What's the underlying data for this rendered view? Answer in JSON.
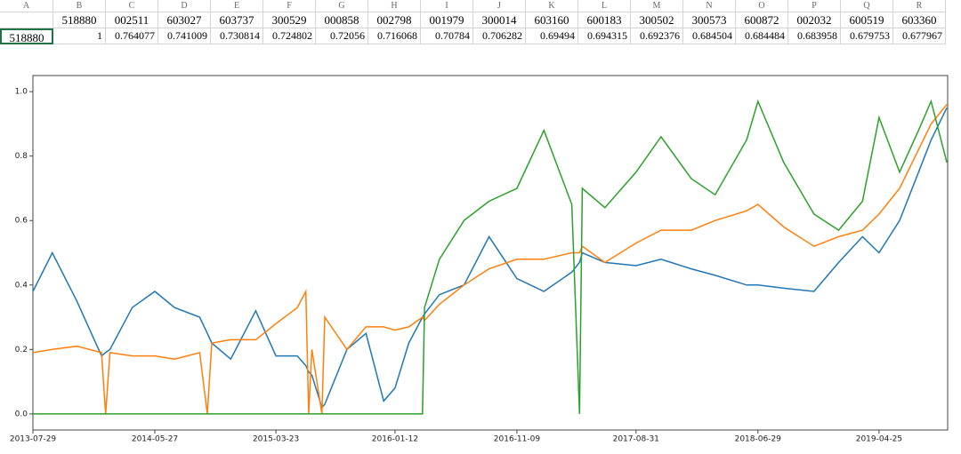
{
  "spreadsheet": {
    "columns": [
      "A",
      "B",
      "C",
      "D",
      "E",
      "F",
      "G",
      "H",
      "I",
      "J",
      "K",
      "L",
      "M",
      "N",
      "O",
      "P",
      "Q",
      "R"
    ],
    "rows": [
      [
        null,
        "518880",
        "002511",
        "603027",
        "603737",
        "300529",
        "000858",
        "002798",
        "001979",
        "300014",
        "603160",
        "600183",
        "300502",
        "300573",
        "600872",
        "002032",
        "600519",
        "603360"
      ],
      [
        "518880",
        1,
        0.764077,
        0.741009,
        0.730814,
        0.724802,
        0.72056,
        0.716068,
        0.70784,
        0.706282,
        0.69494,
        0.694315,
        0.692376,
        0.684504,
        0.684484,
        0.683958,
        0.679753,
        0.677967
      ]
    ]
  },
  "chart_data": {
    "type": "line",
    "x": [
      "2013-07-29",
      "2013-09-15",
      "2013-11-15",
      "2014-01-15",
      "2014-01-25",
      "2014-02-05",
      "2014-04-01",
      "2014-05-27",
      "2014-07-15",
      "2014-09-15",
      "2014-10-04",
      "2014-10-15",
      "2014-12-01",
      "2015-02-01",
      "2015-03-23",
      "2015-05-15",
      "2015-06-05",
      "2015-06-12",
      "2015-06-20",
      "2015-07-15",
      "2015-07-22",
      "2015-09-15",
      "2015-11-01",
      "2015-12-15",
      "2016-01-12",
      "2016-02-15",
      "2016-03-20",
      "2016-03-25",
      "2016-05-01",
      "2016-07-01",
      "2016-09-01",
      "2016-11-09",
      "2017-01-15",
      "2017-03-25",
      "2017-04-13",
      "2017-04-20",
      "2017-06-15",
      "2017-08-31",
      "2017-11-01",
      "2018-01-15",
      "2018-03-15",
      "2018-06-01",
      "2018-06-29",
      "2018-09-01",
      "2018-11-15",
      "2019-01-15",
      "2019-03-15",
      "2019-04-25",
      "2019-06-15",
      "2019-08-01",
      "2019-09-01",
      "2019-10-10"
    ],
    "series": [
      {
        "color": "#1f77b4",
        "values": [
          0.38,
          0.5,
          0.35,
          0.18,
          0.19,
          0.2,
          0.33,
          0.38,
          0.33,
          0.3,
          0.25,
          0.22,
          0.17,
          0.32,
          0.18,
          0.18,
          0.15,
          0.13,
          0.12,
          0.02,
          0.03,
          0.2,
          0.25,
          0.04,
          0.08,
          0.22,
          0.3,
          0.31,
          0.37,
          0.4,
          0.55,
          0.42,
          0.38,
          0.44,
          0.47,
          0.5,
          0.47,
          0.46,
          0.48,
          0.45,
          0.43,
          0.4,
          0.4,
          0.39,
          0.38,
          0.47,
          0.55,
          0.5,
          0.6,
          0.75,
          0.85,
          0.95
        ]
      },
      {
        "color": "#ff7f0e",
        "values": [
          0.19,
          0.2,
          0.21,
          0.19,
          0,
          0.19,
          0.18,
          0.18,
          0.17,
          0.19,
          0,
          0.22,
          0.23,
          0.23,
          0.28,
          0.33,
          0.38,
          0,
          0.2,
          0,
          0.3,
          0.2,
          0.27,
          0.27,
          0.26,
          0.27,
          0.3,
          0.29,
          0.34,
          0.4,
          0.45,
          0.48,
          0.48,
          0.5,
          0.5,
          0.52,
          0.47,
          0.53,
          0.57,
          0.57,
          0.6,
          0.63,
          0.65,
          0.58,
          0.52,
          0.55,
          0.57,
          0.62,
          0.7,
          0.82,
          0.9,
          0.96
        ]
      },
      {
        "color": "#2ca02c",
        "values": [
          0,
          0,
          0,
          0,
          0,
          0,
          0,
          0,
          0,
          0,
          0,
          0,
          0,
          0,
          0,
          0,
          0,
          0,
          0,
          0,
          0,
          0,
          0,
          0,
          0,
          0,
          0,
          0.33,
          0.48,
          0.6,
          0.66,
          0.7,
          0.88,
          0.65,
          0,
          0.7,
          0.64,
          0.75,
          0.86,
          0.73,
          0.68,
          0.85,
          0.97,
          0.78,
          0.62,
          0.57,
          0.66,
          0.92,
          0.75,
          0.88,
          0.97,
          0.78
        ]
      }
    ],
    "xlim": [
      "2013-07-29",
      "2019-10-12"
    ],
    "xticks": [
      "2013-07-29",
      "2014-05-27",
      "2015-03-23",
      "2016-01-12",
      "2016-11-09",
      "2017-08-31",
      "2018-06-29",
      "2019-04-25"
    ],
    "ylim": [
      -0.05,
      1.05
    ],
    "yticks": [
      0.0,
      0.2,
      0.4,
      0.6,
      0.8,
      1.0
    ]
  }
}
